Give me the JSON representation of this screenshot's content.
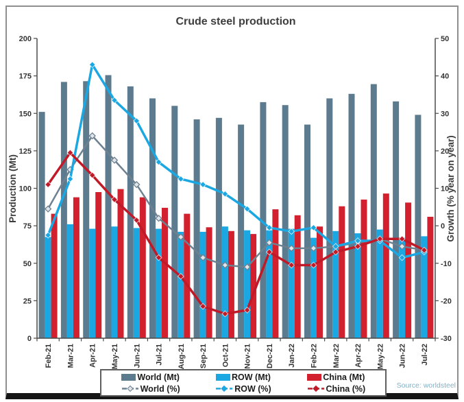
{
  "title": "Crude steel production",
  "source_label": "Source: worldsteel",
  "colors": {
    "world_bar": "#5d7b8e",
    "row_bar": "#1ba7e2",
    "china_bar": "#d2202e",
    "world_line": "#6e8191",
    "row_line": "#1ba7e2",
    "china_line": "#c01a28",
    "frame_border": "#8f8f8f",
    "frame_bottom": "#161616",
    "axis": "#4a4a4a",
    "tick_text": "#333333",
    "title_text": "#3d3d3d",
    "source_text": "#85afc2"
  },
  "chart_data": {
    "type": "combo-bar-line",
    "title": "Crude steel production",
    "grid": false,
    "legend_position": "bottom",
    "categories": [
      "Feb-21",
      "Mar-21",
      "Apr-21",
      "May-21",
      "Jun-21",
      "Jul-21",
      "Aug-21",
      "Sep-21",
      "Oct-21",
      "Nov-21",
      "Dec-21",
      "Jan-22",
      "Feb-22",
      "Mar-22",
      "Apr-22",
      "May-22",
      "Jun-22",
      "Jul-22"
    ],
    "left_axis": {
      "label": "Production (Mt)",
      "min": 0,
      "max": 200,
      "ticks": [
        0,
        25,
        50,
        75,
        100,
        125,
        150,
        175,
        200
      ]
    },
    "right_axis": {
      "label": "Growth (% year on year)",
      "min": -30,
      "max": 50,
      "ticks": [
        -30,
        -20,
        -10,
        0,
        10,
        20,
        30,
        40,
        50
      ]
    },
    "series": [
      {
        "name": "World (Mt)",
        "kind": "bar",
        "axis": "left",
        "color": "#5d7b8e",
        "values": [
          151,
          171,
          171.5,
          175.5,
          168,
          160,
          155,
          146,
          147,
          142.5,
          157.5,
          155.5,
          142.5,
          160,
          163,
          169.5,
          158,
          149
        ]
      },
      {
        "name": "ROW (Mt)",
        "kind": "bar",
        "axis": "left",
        "color": "#1ba7e2",
        "values": [
          67.5,
          76,
          73,
          74.5,
          73.5,
          73,
          71,
          71,
          74.5,
          72,
          72,
          73,
          67,
          71.5,
          70,
          72.5,
          67,
          68
        ]
      },
      {
        "name": "China (Mt)",
        "kind": "bar",
        "axis": "left",
        "color": "#d2202e",
        "values": [
          83,
          94,
          97.5,
          99.5,
          94,
          87,
          83,
          74,
          71.5,
          69.5,
          86,
          82,
          74.5,
          88,
          92.5,
          96.5,
          90.5,
          81
        ]
      },
      {
        "name": "World (%)",
        "kind": "line",
        "axis": "right",
        "color": "#6e8191",
        "marker_fill": "#dfe5e9",
        "stroke_width": 2.5,
        "values": [
          4.5,
          15,
          24,
          17.5,
          11,
          2,
          -3,
          -8.5,
          -10.5,
          -11,
          -4.5,
          -6,
          -6,
          -5.5,
          -4.5,
          -3.5,
          -5.5,
          -6.5
        ]
      },
      {
        "name": "ROW (%)",
        "kind": "line",
        "axis": "right",
        "color": "#1ba7e2",
        "marker_fill": "#1ba7e2",
        "stroke_width": 3.5,
        "values": [
          -2.5,
          12.5,
          43,
          33.5,
          28,
          17,
          12.5,
          11,
          8.5,
          4.5,
          -0.5,
          -1.5,
          -0.5,
          -5.5,
          -4,
          -4,
          -8.5,
          -7
        ]
      },
      {
        "name": "China (%)",
        "kind": "line",
        "axis": "right",
        "color": "#c01a28",
        "marker_fill": "#c01a28",
        "stroke_width": 3.5,
        "values": [
          11,
          19.5,
          13.5,
          7,
          1.5,
          -8.5,
          -13.5,
          -21.5,
          -23.5,
          -22.5,
          -7,
          -10.5,
          -10.5,
          -7,
          -5.5,
          -3.5,
          -3.5,
          -6.5
        ]
      }
    ]
  }
}
